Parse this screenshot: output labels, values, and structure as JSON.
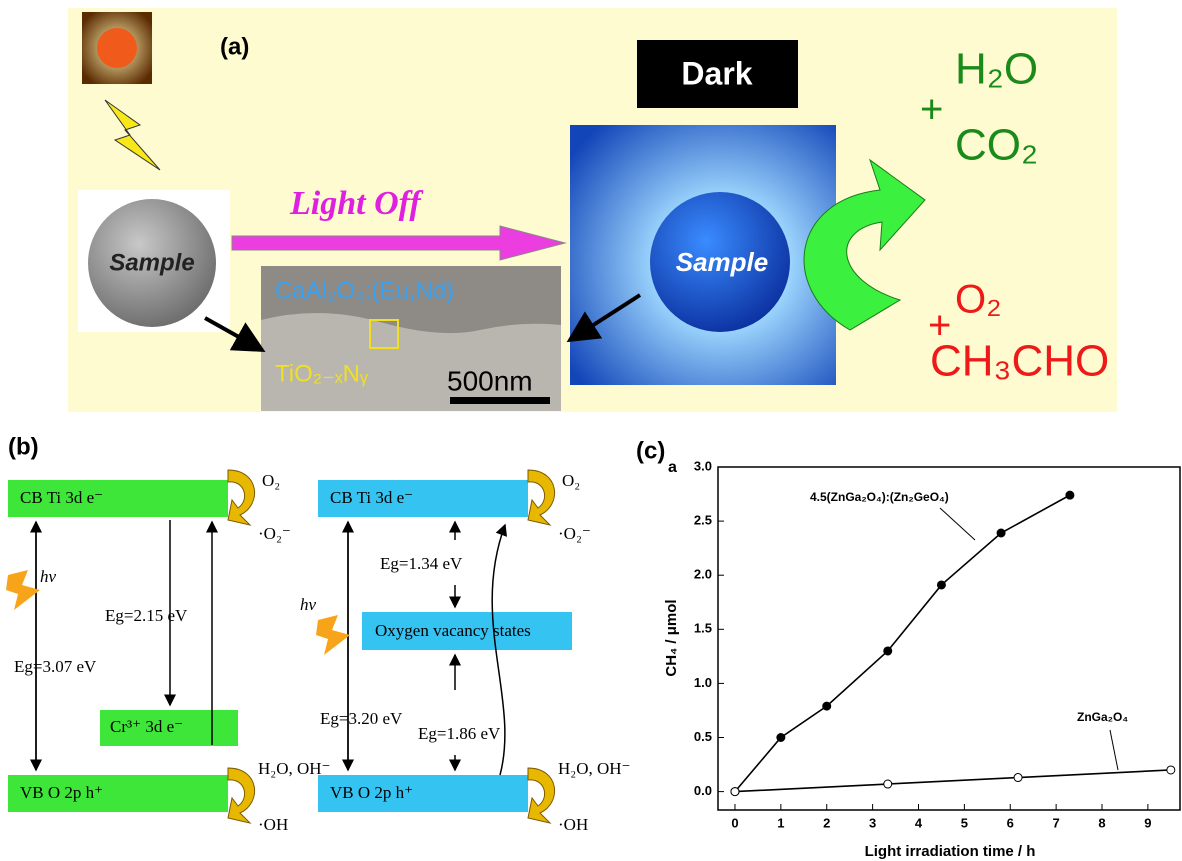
{
  "panel_a": {
    "label": "(a)",
    "dark": "Dark",
    "light_off": "Light Off",
    "sample_left": "Sample",
    "sample_right": "Sample",
    "tem_material": "CaAl₂O₄:(Eu,Nd)",
    "tem_coating": "TiO₂₋ₓNᵧ",
    "scale_bar": "500nm",
    "products_top": {
      "plus": "+",
      "first": "H₂O",
      "second": "CO₂"
    },
    "reactants_bottom": {
      "plus": "+",
      "first": "O₂",
      "second": "CH₃CHO"
    }
  },
  "panel_b": {
    "label": "(b)",
    "left": {
      "cb": "CB Ti 3d e⁻",
      "vb": "VB O 2p h⁺",
      "cr": "Cr³⁺ 3d e⁻",
      "hv": "hν",
      "eg_main": "Eg=3.07 eV",
      "eg_cr": "Eg=2.15 eV",
      "o2": "O₂",
      "superoxide": "·O₂⁻",
      "water": "H₂O, OH⁻",
      "hydroxyl": "·OH"
    },
    "right": {
      "cb": "CB Ti 3d e⁻",
      "vb": "VB O 2p h⁺",
      "vacancy": "Oxygen vacancy states",
      "hv": "hν",
      "eg_main": "Eg=3.20 eV",
      "eg_upper": "Eg=1.34 eV",
      "eg_lower": "Eg=1.86 eV",
      "o2": "O₂",
      "superoxide": "·O₂⁻",
      "water": "H₂O, OH⁻",
      "hydroxyl": "·OH"
    }
  },
  "panel_c": {
    "label": "(c)",
    "sublabel": "a"
  },
  "chart_data": {
    "type": "line",
    "xlabel": "Light irradiation time / h",
    "ylabel": "CH₄ / μmol",
    "xlim": [
      -0.37,
      9.7
    ],
    "ylim": [
      -0.17,
      3.0
    ],
    "xticks": [
      0,
      1,
      2,
      3,
      4,
      5,
      6,
      7,
      8,
      9
    ],
    "yticks": [
      {
        "value": 0,
        "label": "0.0"
      },
      0.5,
      {
        "value": 1,
        "label": "1.0"
      },
      1.5,
      {
        "value": 2,
        "label": "2.0"
      },
      2.5,
      {
        "value": 3,
        "label": "3.0"
      }
    ],
    "series": [
      {
        "name": "4.5(ZnGa₂O₄):(Zn₂GeO₄)",
        "color": "#000000",
        "filled": true,
        "x": [
          0,
          1,
          2,
          3.33,
          4.5,
          5.8,
          7.3
        ],
        "values": [
          0,
          0.5,
          0.79,
          1.3,
          1.91,
          2.39,
          2.74
        ]
      },
      {
        "name": "ZnGa₂O₄",
        "color": "#000000",
        "filled": false,
        "x": [
          0,
          3.33,
          6.17,
          9.5
        ],
        "values": [
          0,
          0.07,
          0.13,
          0.2
        ]
      }
    ]
  }
}
